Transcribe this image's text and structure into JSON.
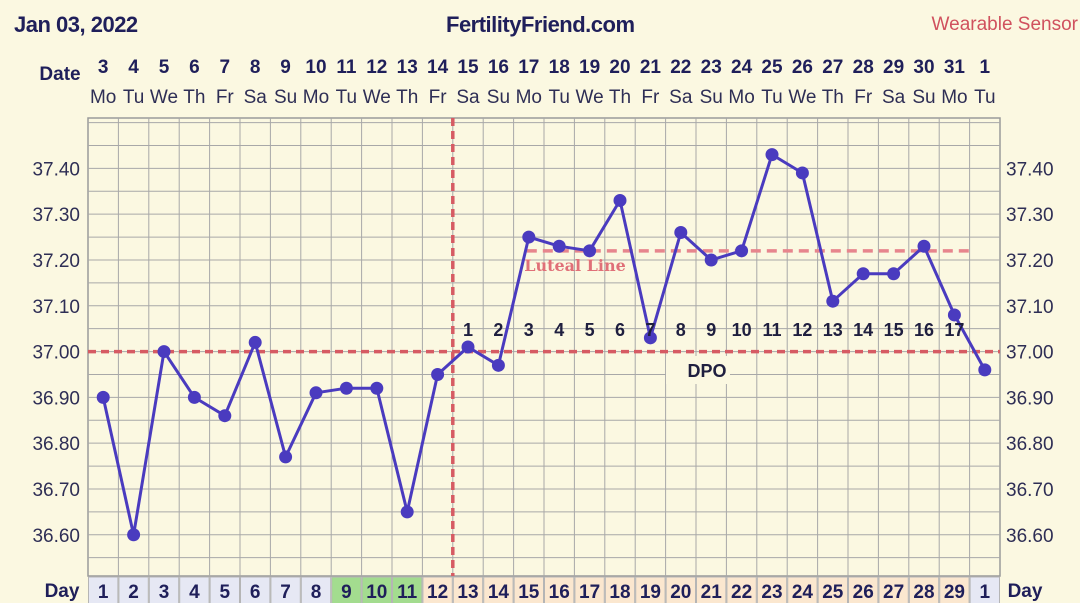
{
  "header": {
    "date": "Jan 03, 2022",
    "site": "FertilityFriend.com",
    "sensor": "Wearable Sensor"
  },
  "labels": {
    "date_row": "Date",
    "day_row": "Day",
    "luteal_line": "Luteal Line",
    "dpo": "DPO"
  },
  "colors": {
    "line": "#4a3bbf",
    "coverline": "#d65b63",
    "follicular_cell": "#e6e8f4",
    "fertile_cell": "#a3dc8f",
    "luteal_cell": "#fbe7cf",
    "background": "#fbf8e1"
  },
  "chart_data": {
    "type": "line",
    "dates": [
      "3",
      "4",
      "5",
      "6",
      "7",
      "8",
      "9",
      "10",
      "11",
      "12",
      "13",
      "14",
      "15",
      "16",
      "17",
      "18",
      "19",
      "20",
      "21",
      "22",
      "23",
      "24",
      "25",
      "26",
      "27",
      "28",
      "29",
      "30",
      "31",
      "1"
    ],
    "weekdays": [
      "Mo",
      "Tu",
      "We",
      "Th",
      "Fr",
      "Sa",
      "Su",
      "Mo",
      "Tu",
      "We",
      "Th",
      "Fr",
      "Sa",
      "Su",
      "Mo",
      "Tu",
      "We",
      "Th",
      "Fr",
      "Sa",
      "Su",
      "Mo",
      "Tu",
      "We",
      "Th",
      "Fr",
      "Sa",
      "Su",
      "Mo",
      "Tu"
    ],
    "cycle_days": [
      "1",
      "2",
      "3",
      "4",
      "5",
      "6",
      "7",
      "8",
      "9",
      "10",
      "11",
      "12",
      "13",
      "14",
      "15",
      "16",
      "17",
      "18",
      "19",
      "20",
      "21",
      "22",
      "23",
      "24",
      "25",
      "26",
      "27",
      "28",
      "29",
      "1"
    ],
    "day_phase": [
      "f",
      "f",
      "f",
      "f",
      "f",
      "f",
      "f",
      "f",
      "g",
      "g",
      "g",
      "l",
      "l",
      "l",
      "l",
      "l",
      "l",
      "l",
      "l",
      "l",
      "l",
      "l",
      "l",
      "l",
      "l",
      "l",
      "l",
      "l",
      "l",
      "f"
    ],
    "temperatures": [
      36.9,
      36.6,
      37.0,
      36.9,
      36.86,
      37.02,
      36.77,
      36.91,
      36.92,
      36.92,
      36.65,
      36.95,
      37.01,
      36.97,
      37.25,
      37.23,
      37.22,
      37.33,
      37.03,
      37.26,
      37.2,
      37.22,
      37.43,
      37.39,
      37.11,
      37.17,
      37.17,
      37.23,
      37.08,
      36.96
    ],
    "dpo_labels": [
      "",
      "",
      "",
      "",
      "",
      "",
      "",
      "",
      "",
      "",
      "",
      "",
      "1",
      "2",
      "3",
      "4",
      "5",
      "6",
      "7",
      "8",
      "9",
      "10",
      "11",
      "12",
      "13",
      "14",
      "15",
      "16",
      "17",
      ""
    ],
    "ylim": [
      36.51,
      37.51
    ],
    "y_ticks": [
      "37.40",
      "37.30",
      "37.20",
      "37.10",
      "37.00",
      "36.90",
      "36.80",
      "36.70",
      "36.60"
    ],
    "coverline": 37.0,
    "luteal_line": 37.22,
    "ovulation_after_index": 11,
    "grid": true
  }
}
